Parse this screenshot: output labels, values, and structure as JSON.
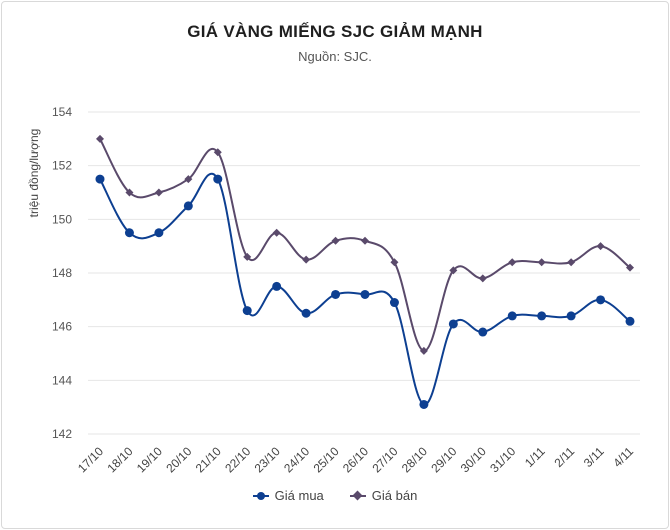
{
  "chart_data": {
    "type": "line",
    "title": "GIÁ VÀNG MIẾNG SJC GIẢM MẠNH",
    "subtitle": "Nguồn: SJC.",
    "ylabel": "triệu đồng/lượng",
    "xlabel": "",
    "ylim": [
      142,
      154
    ],
    "yticks": [
      142,
      144,
      146,
      148,
      150,
      152,
      154
    ],
    "grid": true,
    "legend_position": "bottom",
    "categories": [
      "17/10",
      "18/10",
      "19/10",
      "20/10",
      "21/10",
      "22/10",
      "23/10",
      "24/10",
      "25/10",
      "26/10",
      "27/10",
      "28/10",
      "29/10",
      "30/10",
      "31/10",
      "1/11",
      "2/11",
      "3/11",
      "4/11"
    ],
    "series": [
      {
        "name": "Giá mua",
        "color": "#0d3f91",
        "marker": "circle",
        "values": [
          151.5,
          149.5,
          149.5,
          150.5,
          151.5,
          146.6,
          147.5,
          146.5,
          147.2,
          147.2,
          146.9,
          143.1,
          146.1,
          145.8,
          146.4,
          146.4,
          146.4,
          147.0,
          146.2
        ]
      },
      {
        "name": "Giá bán",
        "color": "#5a4a6b",
        "marker": "diamond",
        "values": [
          153.0,
          151.0,
          151.0,
          151.5,
          152.5,
          148.6,
          149.5,
          148.5,
          149.2,
          149.2,
          148.4,
          145.1,
          148.1,
          147.8,
          148.4,
          148.4,
          148.4,
          149.0,
          148.2
        ]
      }
    ]
  }
}
